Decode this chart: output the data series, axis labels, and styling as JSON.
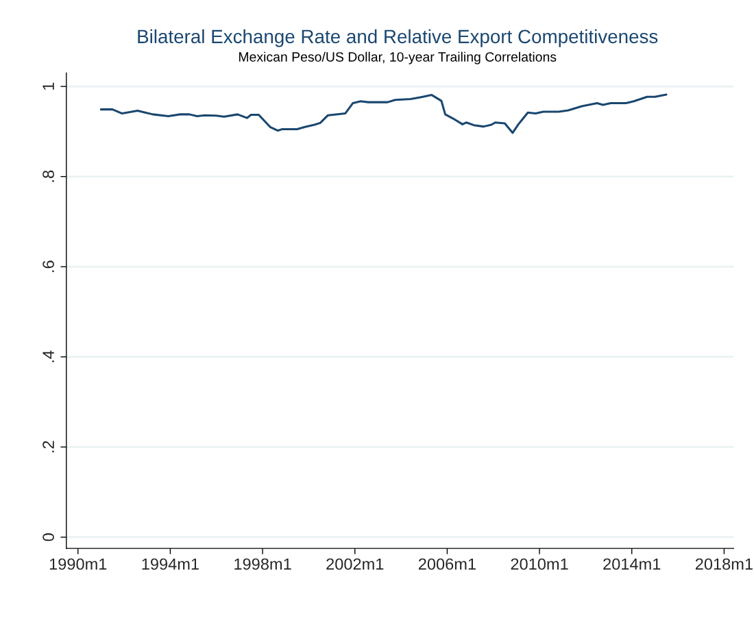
{
  "chart_data": {
    "type": "line",
    "title": "Bilateral Exchange Rate and Relative Export Competitiveness",
    "subtitle": "Mexican Peso/US Dollar, 10-year Trailing Correlations",
    "x": [
      "1991-01",
      "1991-07",
      "1991-12",
      "1992-08",
      "1992-12",
      "1993-04",
      "1993-12",
      "1994-06",
      "1994-11",
      "1995-03",
      "1995-07",
      "1996-01",
      "1996-05",
      "1996-12",
      "1997-05",
      "1997-07",
      "1997-11",
      "1998-05",
      "1998-09",
      "1998-11",
      "1999-07",
      "1999-11",
      "2000-04",
      "2000-07",
      "2000-11",
      "2001-08",
      "2001-12",
      "2002-04",
      "2002-08",
      "2003-06",
      "2003-10",
      "2004-06",
      "2004-11",
      "2005-05",
      "2005-10",
      "2005-12",
      "2006-04",
      "2006-09",
      "2006-11",
      "2007-03",
      "2007-08",
      "2007-12",
      "2008-02",
      "2008-07",
      "2008-11",
      "2009-02",
      "2009-07",
      "2009-11",
      "2010-03",
      "2010-11",
      "2011-04",
      "2011-11",
      "2012-07",
      "2012-10",
      "2013-02",
      "2013-10",
      "2014-02",
      "2014-09",
      "2015-01",
      "2015-07"
    ],
    "series": [
      {
        "color": "#1a476f",
        "values": [
          0.949,
          0.949,
          0.94,
          0.946,
          0.942,
          0.938,
          0.934,
          0.938,
          0.938,
          0.934,
          0.936,
          0.935,
          0.933,
          0.938,
          0.93,
          0.937,
          0.937,
          0.91,
          0.902,
          0.905,
          0.905,
          0.91,
          0.915,
          0.919,
          0.936,
          0.94,
          0.963,
          0.967,
          0.965,
          0.965,
          0.97,
          0.972,
          0.976,
          0.981,
          0.968,
          0.938,
          0.929,
          0.916,
          0.92,
          0.914,
          0.911,
          0.915,
          0.92,
          0.918,
          0.897,
          0.916,
          0.942,
          0.94,
          0.944,
          0.944,
          0.947,
          0.956,
          0.963,
          0.959,
          0.963,
          0.963,
          0.967,
          0.977,
          0.977,
          0.982
        ]
      }
    ],
    "xlim": [
      "1989-07",
      "2018-06"
    ],
    "xticks": [
      {
        "value": "1990-01",
        "label": "1990m1"
      },
      {
        "value": "1994-01",
        "label": "1994m1"
      },
      {
        "value": "1998-01",
        "label": "1998m1"
      },
      {
        "value": "2002-01",
        "label": "2002m1"
      },
      {
        "value": "2006-01",
        "label": "2006m1"
      },
      {
        "value": "2010-01",
        "label": "2010m1"
      },
      {
        "value": "2014-01",
        "label": "2014m1"
      },
      {
        "value": "2018-01",
        "label": "2018m1"
      }
    ],
    "ylim": [
      -0.025,
      1.03
    ],
    "yticks": [
      0,
      {
        "value": 0.2,
        "label": ".2"
      },
      {
        "value": 0.4,
        "label": ".4"
      },
      {
        "value": 0.6,
        "label": ".6"
      },
      {
        "value": 0.8,
        "label": ".8"
      },
      1
    ],
    "grid": "y",
    "line_style": "solid",
    "marker": "none"
  }
}
